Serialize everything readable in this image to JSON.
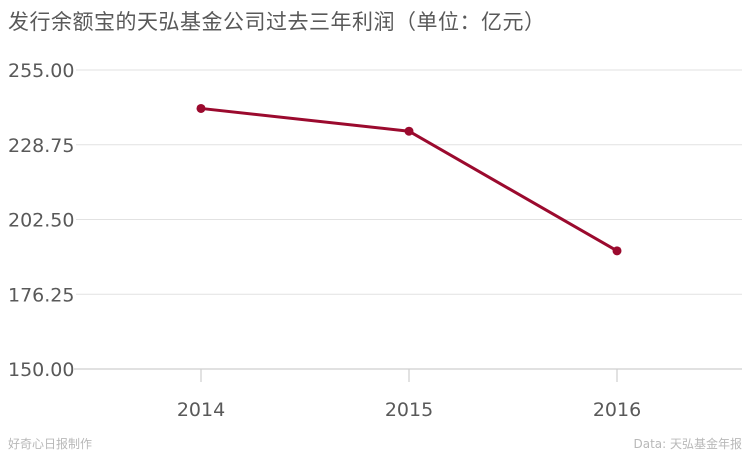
{
  "chart_data": {
    "type": "line",
    "title": "发行余额宝的天弘基金公司过去三年利润（单位：亿元）",
    "xlabel": "",
    "ylabel": "",
    "categories": [
      "2014",
      "2015",
      "2016"
    ],
    "series": [
      {
        "values": [
          241.5,
          233.5,
          191.5
        ]
      }
    ],
    "ylim": [
      150,
      255
    ],
    "yticks": [
      "150.00",
      "176.25",
      "202.50",
      "228.75",
      "255.00"
    ],
    "grid": true,
    "legend": "none"
  },
  "colors": {
    "line": "#9b0a2e",
    "grid": "#e2e2e2",
    "axis": "#cfcfcf",
    "text": "#595959",
    "footer": "#b8b8b8"
  },
  "footer": {
    "left": "好奇心日报制作",
    "right": "Data: 天弘基金年报"
  }
}
